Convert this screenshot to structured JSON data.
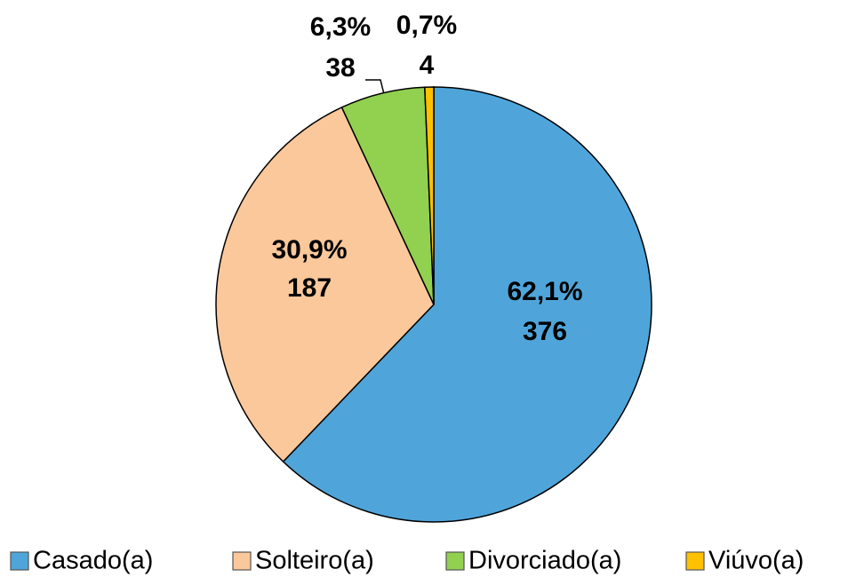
{
  "chart_data": {
    "type": "pie",
    "categories": [
      "Casado(a)",
      "Solteiro(a)",
      "Divorciado(a)",
      "Viúvo(a)"
    ],
    "values": [
      376,
      187,
      38,
      4
    ],
    "shares": [
      {
        "value": 62.1,
        "label": "62,1%"
      },
      {
        "value": 30.9,
        "label": "30,9%"
      },
      {
        "value": 6.3,
        "label": "6,3%"
      },
      {
        "value": 0.7,
        "label": "0,7%"
      }
    ],
    "colors": [
      "#4fa5da",
      "#fac89b",
      "#92d050",
      "#ffc000"
    ],
    "legend": "bottom"
  }
}
